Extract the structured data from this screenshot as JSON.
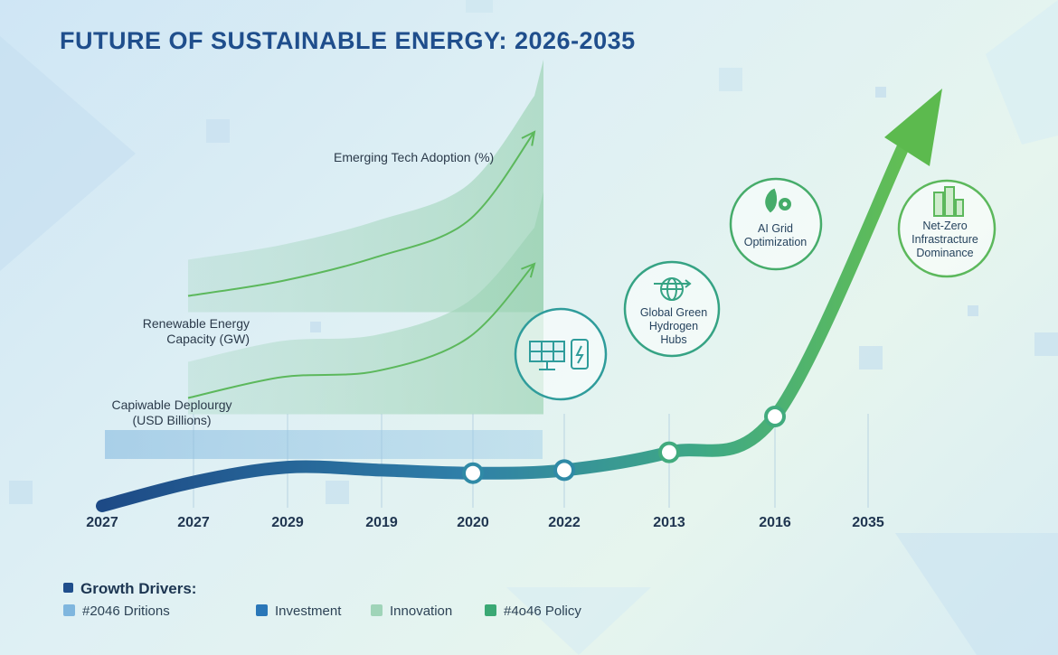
{
  "chart_data": {
    "type": "line",
    "title": "FUTURE OF SUSTAINABLE ENERGY: 2026-2035",
    "x_tick_labels": [
      "2027",
      "2027",
      "2029",
      "2019",
      "2020",
      "2022",
      "2013",
      "2016",
      "2035"
    ],
    "series": [
      {
        "name": "Emerging Tech Adoption (%)",
        "style": "area-line",
        "color": "#5cb85c",
        "values": [
          null,
          25,
          30,
          38,
          50,
          80
        ]
      },
      {
        "name": "Renewable Energy\nCapacity (GW)",
        "style": "area-line",
        "color": "#5cb85c",
        "values": [
          null,
          15,
          22,
          24,
          35,
          60
        ]
      },
      {
        "name": "Capiwable Deplourgy\n(USD Billions)",
        "style": "main-arrow",
        "color": "#1f4e8c",
        "values": [
          0,
          8,
          13,
          12,
          11,
          12,
          18,
          30,
          62
        ]
      }
    ],
    "milestones": [
      {
        "label": "",
        "icon": "solar-battery-icon",
        "index": 5
      },
      {
        "label": "Global Green\nHydrogen\nHubs",
        "icon": "globe-arrows-icon",
        "index": 6
      },
      {
        "label": "AI Grid\nOptimization",
        "icon": "leaf-gear-icon",
        "index": 7
      },
      {
        "label": "Net-Zero\nInfrastracture\nDominance",
        "icon": "city-buildings-icon",
        "index": 8
      }
    ],
    "grid": false,
    "legend": {
      "title": "Growth Drivers:",
      "position": "bottom-left",
      "items": [
        {
          "label": "#2046 Dritions",
          "color": "#7fb6de"
        },
        {
          "label": "Investment",
          "color": "#2a77b8"
        },
        {
          "label": "Innovation",
          "color": "#9fd4b8"
        },
        {
          "label": "#4o46  Policy",
          "color": "#3aa874"
        }
      ]
    }
  }
}
